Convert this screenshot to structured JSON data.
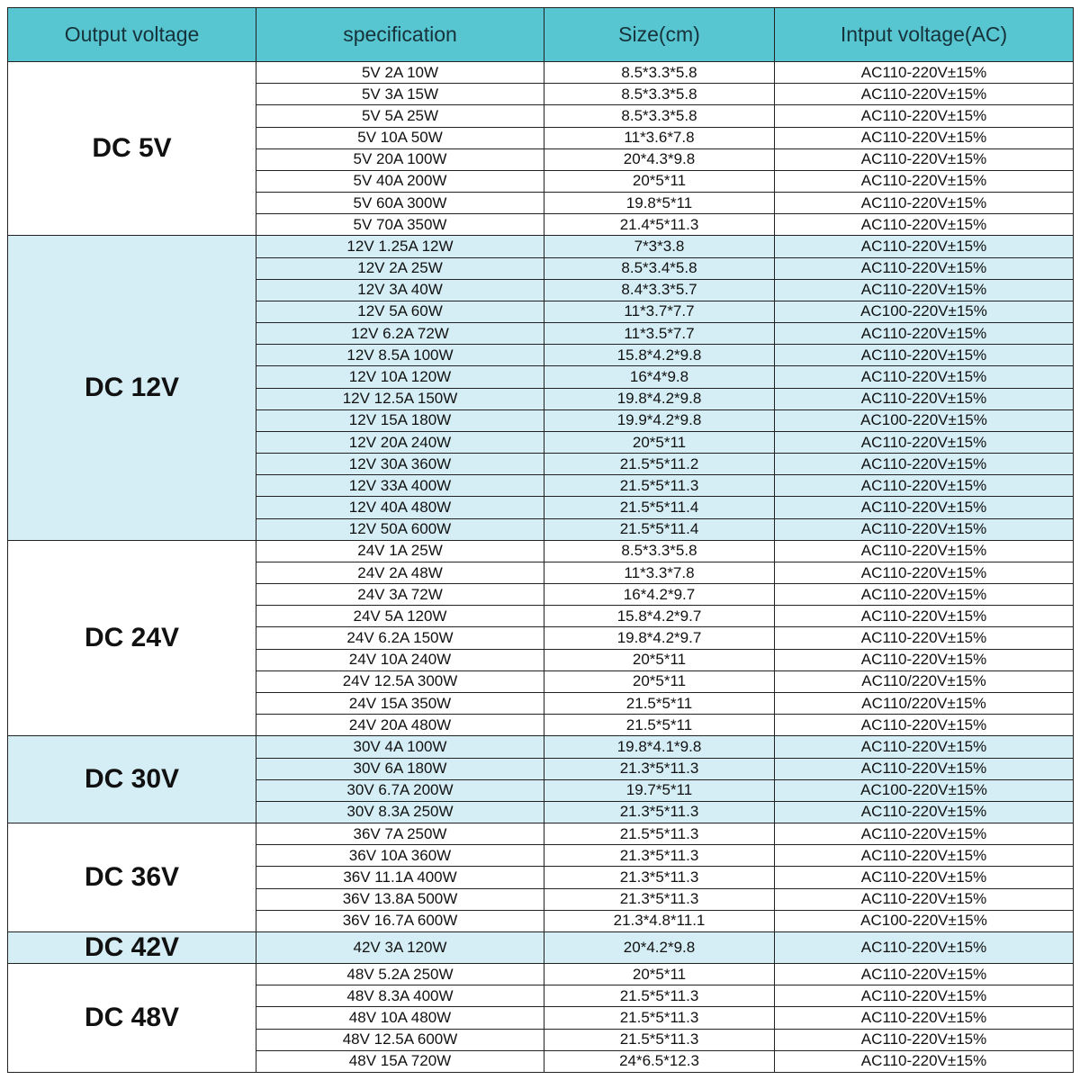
{
  "page": {
    "title": "DC power supply specification table"
  },
  "colors": {
    "header_bg": "#58c6d1",
    "header_text": "#16323a",
    "row_alt_bg": "#d5eef5",
    "row_white_bg": "#ffffff",
    "border": "#222222",
    "text": "#111111"
  },
  "table": {
    "headers": [
      "Output voltage",
      "specification",
      "Size(cm)",
      "Intput voltage(AC)"
    ],
    "groups": [
      {
        "label": "DC 5V",
        "bg": "white",
        "rows": [
          [
            "5V 2A 10W",
            "8.5*3.3*5.8",
            "AC110-220V±15%"
          ],
          [
            "5V 3A 15W",
            "8.5*3.3*5.8",
            "AC110-220V±15%"
          ],
          [
            "5V 5A 25W",
            "8.5*3.3*5.8",
            "AC110-220V±15%"
          ],
          [
            "5V 10A 50W",
            "11*3.6*7.8",
            "AC110-220V±15%"
          ],
          [
            "5V 20A 100W",
            "20*4.3*9.8",
            "AC110-220V±15%"
          ],
          [
            "5V 40A 200W",
            "20*5*11",
            "AC110-220V±15%"
          ],
          [
            "5V 60A 300W",
            "19.8*5*11",
            "AC110-220V±15%"
          ],
          [
            "5V 70A 350W",
            "21.4*5*11.3",
            "AC110-220V±15%"
          ]
        ]
      },
      {
        "label": "DC 12V",
        "bg": "blue",
        "rows": [
          [
            "12V 1.25A 12W",
            "7*3*3.8",
            "AC110-220V±15%"
          ],
          [
            "12V 2A 25W",
            "8.5*3.4*5.8",
            "AC110-220V±15%"
          ],
          [
            "12V 3A 40W",
            "8.4*3.3*5.7",
            "AC110-220V±15%"
          ],
          [
            "12V 5A 60W",
            "11*3.7*7.7",
            "AC100-220V±15%"
          ],
          [
            "12V 6.2A 72W",
            "11*3.5*7.7",
            "AC110-220V±15%"
          ],
          [
            "12V 8.5A 100W",
            "15.8*4.2*9.8",
            "AC110-220V±15%"
          ],
          [
            "12V 10A 120W",
            "16*4*9.8",
            "AC110-220V±15%"
          ],
          [
            "12V 12.5A 150W",
            "19.8*4.2*9.8",
            "AC110-220V±15%"
          ],
          [
            "12V 15A 180W",
            "19.9*4.2*9.8",
            "AC100-220V±15%"
          ],
          [
            "12V 20A 240W",
            "20*5*11",
            "AC110-220V±15%"
          ],
          [
            "12V 30A 360W",
            "21.5*5*11.2",
            "AC110-220V±15%"
          ],
          [
            "12V 33A 400W",
            "21.5*5*11.3",
            "AC110-220V±15%"
          ],
          [
            "12V 40A 480W",
            "21.5*5*11.4",
            "AC110-220V±15%"
          ],
          [
            "12V 50A 600W",
            "21.5*5*11.4",
            "AC110-220V±15%"
          ]
        ]
      },
      {
        "label": "DC 24V",
        "bg": "white",
        "rows": [
          [
            "24V 1A 25W",
            "8.5*3.3*5.8",
            "AC110-220V±15%"
          ],
          [
            "24V 2A 48W",
            "11*3.3*7.8",
            "AC110-220V±15%"
          ],
          [
            "24V 3A 72W",
            "16*4.2*9.7",
            "AC110-220V±15%"
          ],
          [
            "24V 5A 120W",
            "15.8*4.2*9.7",
            "AC110-220V±15%"
          ],
          [
            "24V 6.2A 150W",
            "19.8*4.2*9.7",
            "AC110-220V±15%"
          ],
          [
            "24V 10A 240W",
            "20*5*11",
            "AC110-220V±15%"
          ],
          [
            "24V 12.5A 300W",
            "20*5*11",
            "AC110/220V±15%"
          ],
          [
            "24V 15A 350W",
            "21.5*5*11",
            "AC110/220V±15%"
          ],
          [
            "24V 20A 480W",
            "21.5*5*11",
            "AC110-220V±15%"
          ]
        ]
      },
      {
        "label": "DC 30V",
        "bg": "blue",
        "rows": [
          [
            "30V 4A 100W",
            "19.8*4.1*9.8",
            "AC110-220V±15%"
          ],
          [
            "30V 6A 180W",
            "21.3*5*11.3",
            "AC110-220V±15%"
          ],
          [
            "30V 6.7A 200W",
            "19.7*5*11",
            "AC100-220V±15%"
          ],
          [
            "30V 8.3A 250W",
            "21.3*5*11.3",
            "AC110-220V±15%"
          ]
        ]
      },
      {
        "label": "DC 36V",
        "bg": "white",
        "rows": [
          [
            "36V 7A 250W",
            "21.5*5*11.3",
            "AC110-220V±15%"
          ],
          [
            "36V 10A 360W",
            "21.3*5*11.3",
            "AC110-220V±15%"
          ],
          [
            "36V 11.1A 400W",
            "21.3*5*11.3",
            "AC110-220V±15%"
          ],
          [
            "36V 13.8A 500W",
            "21.3*5*11.3",
            "AC110-220V±15%"
          ],
          [
            "36V 16.7A 600W",
            "21.3*4.8*11.1",
            "AC100-220V±15%"
          ]
        ]
      },
      {
        "label": "DC 42V",
        "bg": "blue",
        "rows": [
          [
            "42V 3A 120W",
            "20*4.2*9.8",
            "AC110-220V±15%"
          ]
        ]
      },
      {
        "label": "DC 48V",
        "bg": "white",
        "rows": [
          [
            "48V 5.2A 250W",
            "20*5*11",
            "AC110-220V±15%"
          ],
          [
            "48V 8.3A 400W",
            "21.5*5*11.3",
            "AC110-220V±15%"
          ],
          [
            "48V 10A 480W",
            "21.5*5*11.3",
            "AC110-220V±15%"
          ],
          [
            "48V 12.5A 600W",
            "21.5*5*11.3",
            "AC110-220V±15%"
          ],
          [
            "48V 15A 720W",
            "24*6.5*12.3",
            "AC110-220V±15%"
          ]
        ]
      }
    ]
  }
}
